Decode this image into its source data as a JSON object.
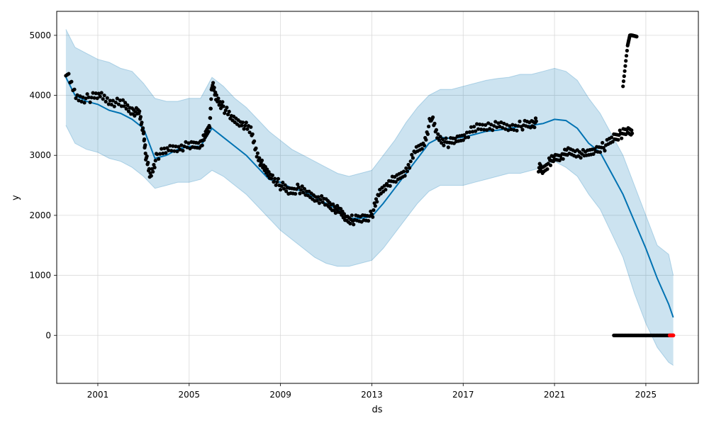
{
  "chart_data": {
    "type": "line",
    "title": "",
    "xlabel": "ds",
    "ylabel": "y",
    "x_ticks": [
      "2001",
      "2005",
      "2009",
      "2013",
      "2017",
      "2021",
      "2025"
    ],
    "y_ticks": [
      0,
      1000,
      2000,
      3000,
      4000,
      5000
    ],
    "xlim": [
      1999.2,
      2027.3
    ],
    "ylim": [
      -800,
      5400
    ],
    "grid": true,
    "legend": "none",
    "colors": {
      "forecast": "#0072B2",
      "interval": "#0072B2",
      "observed": "#000000",
      "highlight": "#ff0000",
      "grid": "#d9d9d9"
    },
    "forecast": {
      "x": [
        1999.6,
        2000.0,
        2000.5,
        2001.0,
        2001.5,
        2002.0,
        2002.5,
        2003.0,
        2003.5,
        2004.0,
        2004.5,
        2005.0,
        2005.5,
        2006.0,
        2006.5,
        2007.0,
        2007.5,
        2008.0,
        2008.5,
        2009.0,
        2009.5,
        2010.0,
        2010.5,
        2011.0,
        2011.5,
        2012.0,
        2012.5,
        2013.0,
        2013.5,
        2014.0,
        2014.5,
        2015.0,
        2015.5,
        2016.0,
        2016.5,
        2017.0,
        2017.5,
        2018.0,
        2018.5,
        2019.0,
        2019.5,
        2020.0,
        2020.5,
        2021.0,
        2021.5,
        2022.0,
        2022.5,
        2023.0,
        2023.5,
        2024.0,
        2024.5,
        2025.0,
        2025.5,
        2026.0,
        2026.2
      ],
      "yhat": [
        4300,
        4000,
        3900,
        3850,
        3750,
        3700,
        3600,
        3450,
        2950,
        3000,
        3100,
        3150,
        3150,
        3450,
        3300,
        3150,
        3000,
        2800,
        2600,
        2550,
        2450,
        2400,
        2300,
        2200,
        2100,
        1950,
        1950,
        1980,
        2200,
        2450,
        2700,
        2950,
        3200,
        3300,
        3280,
        3300,
        3350,
        3400,
        3420,
        3450,
        3480,
        3500,
        3530,
        3600,
        3580,
        3450,
        3200,
        3050,
        2700,
        2350,
        1900,
        1450,
        950,
        520,
        300
      ],
      "lower": [
        3500,
        3200,
        3100,
        3050,
        2950,
        2900,
        2800,
        2650,
        2450,
        2500,
        2550,
        2550,
        2600,
        2750,
        2650,
        2500,
        2350,
        2150,
        1950,
        1750,
        1600,
        1450,
        1300,
        1200,
        1150,
        1150,
        1200,
        1250,
        1450,
        1700,
        1950,
        2200,
        2400,
        2500,
        2500,
        2500,
        2550,
        2600,
        2650,
        2700,
        2700,
        2750,
        2800,
        2900,
        2800,
        2650,
        2350,
        2100,
        1700,
        1300,
        700,
        200,
        -200,
        -450,
        -500
      ],
      "upper": [
        5100,
        4800,
        4700,
        4600,
        4550,
        4450,
        4400,
        4200,
        3950,
        3900,
        3900,
        3950,
        3950,
        4300,
        4150,
        3950,
        3800,
        3600,
        3400,
        3250,
        3100,
        3000,
        2900,
        2800,
        2700,
        2650,
        2700,
        2750,
        3000,
        3250,
        3550,
        3800,
        4000,
        4100,
        4100,
        4150,
        4200,
        4250,
        4280,
        4300,
        4350,
        4350,
        4400,
        4450,
        4400,
        4250,
        3950,
        3700,
        3350,
        3000,
        2500,
        2000,
        1500,
        1350,
        1000
      ]
    },
    "observed_series": [
      {
        "x": [
          1999.6,
          2000.1,
          2000.6,
          2001.1,
          2001.6,
          2002.1,
          2002.5,
          2002.8,
          2003.0,
          2003.1,
          2003.3,
          2003.6,
          2004.1,
          2004.6,
          2005.1,
          2005.5,
          2005.7,
          2005.9,
          2006.0,
          2006.2,
          2006.5,
          2006.9,
          2007.3,
          2007.7,
          2008.0,
          2008.3,
          2008.6,
          2009.0,
          2009.4,
          2009.8,
          2010.2,
          2010.6,
          2011.0,
          2011.3,
          2011.6,
          2011.9,
          2012.2,
          2012.6,
          2013.0,
          2013.3,
          2013.7,
          2014.1,
          2014.5,
          2014.9,
          2015.3,
          2015.6,
          2015.9,
          2016.3,
          2016.7,
          2017.1,
          2017.6,
          2018.1,
          2018.6,
          2019.1,
          2019.6,
          2020.0,
          2020.2
        ],
        "y": [
          4400,
          3950,
          3950,
          4000,
          3900,
          3850,
          3750,
          3700,
          3400,
          3000,
          2650,
          3000,
          3100,
          3150,
          3150,
          3200,
          3300,
          3500,
          4200,
          3950,
          3800,
          3600,
          3550,
          3400,
          3000,
          2750,
          2650,
          2500,
          2400,
          2450,
          2350,
          2300,
          2200,
          2150,
          2050,
          1950,
          1920,
          1950,
          2000,
          2350,
          2550,
          2600,
          2750,
          3050,
          3200,
          3650,
          3300,
          3200,
          3250,
          3350,
          3450,
          3500,
          3480,
          3470,
          3500,
          3520,
          3550
        ]
      },
      {
        "x": [
          2020.3,
          2020.5,
          2020.8,
          2021.0,
          2021.3,
          2021.6,
          2022.0,
          2022.4,
          2022.8,
          2023.2,
          2023.6,
          2023.9,
          2024.2,
          2024.4
        ],
        "y": [
          2800,
          2750,
          2900,
          2950,
          3000,
          3050,
          3050,
          3000,
          3100,
          3150,
          3300,
          3350,
          3400,
          3420
        ]
      },
      {
        "x": [
          2024.0,
          2024.2,
          2024.3,
          2024.4,
          2024.5,
          2024.6
        ],
        "y": [
          4150,
          4830,
          5000,
          5000,
          4990,
          4980
        ]
      }
    ],
    "observed_zero": {
      "x_start": 2023.6,
      "x_end": 2026.1,
      "y": 0
    },
    "highlight_points": {
      "x": [
        2026.05,
        2026.1,
        2026.15,
        2026.2
      ],
      "y": [
        0,
        0,
        0,
        0
      ]
    }
  }
}
